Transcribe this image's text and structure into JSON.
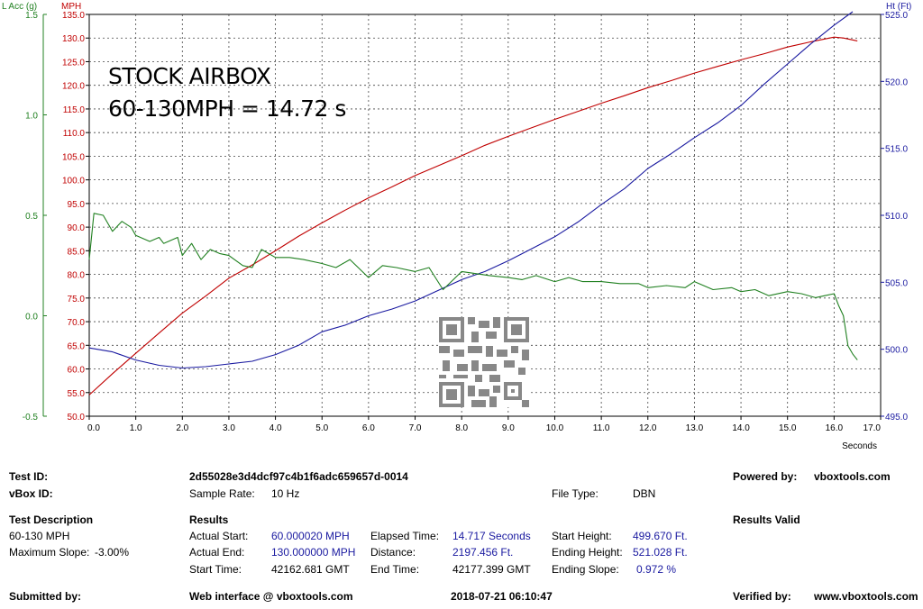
{
  "chart_data": {
    "type": "line",
    "overlay_title": "STOCK AIRBOX",
    "overlay_subtitle": "60-130MPH = 14.72 s",
    "x_axis": {
      "label": "Seconds",
      "range": [
        0,
        17
      ],
      "ticks": [
        "0.0",
        "1.0",
        "2.0",
        "3.0",
        "4.0",
        "5.0",
        "6.0",
        "7.0",
        "8.0",
        "9.0",
        "10.0",
        "11.0",
        "12.0",
        "13.0",
        "14.0",
        "15.0",
        "16.0",
        "17.0"
      ]
    },
    "y_axes": {
      "lacc": {
        "label": "L Acc (g)",
        "color": "#208020",
        "range": [
          -0.5,
          1.5
        ],
        "ticks": [
          "1.5",
          "1.0",
          "0.5",
          "0.0",
          "-0.5"
        ],
        "tick_values": [
          1.5,
          1.0,
          0.5,
          0.0,
          -0.5
        ]
      },
      "mph": {
        "label": "MPH",
        "color": "#c00000",
        "range": [
          50,
          135
        ],
        "ticks": [
          "135.0",
          "130.0",
          "125.0",
          "120.0",
          "115.0",
          "110.0",
          "105.0",
          "100.0",
          "95.0",
          "90.0",
          "85.0",
          "80.0",
          "75.0",
          "70.0",
          "65.0",
          "60.0",
          "55.0",
          "50.0"
        ]
      },
      "ht": {
        "label": "Ht (Ft)",
        "color": "#1a1aa0",
        "range": [
          495,
          525
        ],
        "ticks": [
          "525.0",
          "520.0",
          "515.0",
          "510.0",
          "505.0",
          "500.0",
          "495.0"
        ],
        "tick_values": [
          525,
          520,
          515,
          510,
          505,
          500,
          495
        ]
      }
    },
    "grid": true,
    "series": [
      {
        "axis": "mph",
        "color": "#c00000",
        "x": [
          0.0,
          0.5,
          1.0,
          1.5,
          2.0,
          2.5,
          3.0,
          3.5,
          4.0,
          4.5,
          5.0,
          5.5,
          6.0,
          6.5,
          7.0,
          7.5,
          8.0,
          8.5,
          9.0,
          9.5,
          10.0,
          10.5,
          11.0,
          11.5,
          12.0,
          12.5,
          13.0,
          13.5,
          14.0,
          14.5,
          15.0,
          15.5,
          16.0,
          16.2,
          16.5
        ],
        "y": [
          54.5,
          59.0,
          63.3,
          67.6,
          71.8,
          75.4,
          79.2,
          82.0,
          85.0,
          88.1,
          90.9,
          93.6,
          96.2,
          98.5,
          100.9,
          103.0,
          105.1,
          107.3,
          109.2,
          111.0,
          112.8,
          114.5,
          116.2,
          117.8,
          119.5,
          121.0,
          122.6,
          124.0,
          125.4,
          126.7,
          128.1,
          129.2,
          130.2,
          130.0,
          129.4
        ]
      },
      {
        "axis": "ht",
        "color": "#1a1aa0",
        "x": [
          0.0,
          0.5,
          1.0,
          1.5,
          2.0,
          2.5,
          3.0,
          3.5,
          4.0,
          4.5,
          5.0,
          5.5,
          6.0,
          6.5,
          7.0,
          7.5,
          8.0,
          8.5,
          9.0,
          9.5,
          10.0,
          10.5,
          11.0,
          11.5,
          12.0,
          12.5,
          13.0,
          13.5,
          14.0,
          14.5,
          15.0,
          15.5,
          16.0,
          16.4
        ],
        "y": [
          500.1,
          499.8,
          499.2,
          498.8,
          498.6,
          498.7,
          498.9,
          499.1,
          499.6,
          500.3,
          501.3,
          501.8,
          502.5,
          503.0,
          503.6,
          504.4,
          505.2,
          505.8,
          506.6,
          507.5,
          508.4,
          509.5,
          510.8,
          512.0,
          513.5,
          514.6,
          515.8,
          516.9,
          518.2,
          519.8,
          521.3,
          522.8,
          524.2,
          525.2
        ]
      },
      {
        "axis": "lacc",
        "color": "#208020",
        "x": [
          0.0,
          0.1,
          0.3,
          0.5,
          0.7,
          0.9,
          1.0,
          1.3,
          1.5,
          1.6,
          1.9,
          2.0,
          2.2,
          2.4,
          2.6,
          2.8,
          3.0,
          3.3,
          3.5,
          3.7,
          4.0,
          4.3,
          4.6,
          5.0,
          5.3,
          5.6,
          6.0,
          6.3,
          6.6,
          7.0,
          7.3,
          7.6,
          8.0,
          8.3,
          8.6,
          9.0,
          9.3,
          9.6,
          10.0,
          10.3,
          10.6,
          11.0,
          11.4,
          11.8,
          12.0,
          12.4,
          12.8,
          13.0,
          13.4,
          13.8,
          14.0,
          14.3,
          14.6,
          15.0,
          15.3,
          15.6,
          15.8,
          16.0,
          16.1,
          16.2,
          16.3,
          16.4,
          16.5
        ],
        "y": [
          0.28,
          0.51,
          0.5,
          0.42,
          0.47,
          0.44,
          0.4,
          0.37,
          0.39,
          0.36,
          0.39,
          0.3,
          0.36,
          0.28,
          0.33,
          0.31,
          0.3,
          0.25,
          0.24,
          0.33,
          0.29,
          0.29,
          0.28,
          0.26,
          0.24,
          0.28,
          0.19,
          0.25,
          0.24,
          0.22,
          0.24,
          0.13,
          0.22,
          0.21,
          0.2,
          0.19,
          0.18,
          0.2,
          0.17,
          0.19,
          0.17,
          0.17,
          0.16,
          0.16,
          0.14,
          0.15,
          0.14,
          0.17,
          0.13,
          0.14,
          0.12,
          0.13,
          0.1,
          0.12,
          0.11,
          0.09,
          0.1,
          0.11,
          0.05,
          0.0,
          -0.15,
          -0.19,
          -0.22
        ]
      }
    ]
  },
  "info": {
    "test_id_label": "Test ID:",
    "test_id_value": "2d55028e3d4dcf97c4b1f6adc659657d-0014",
    "powered_by_label": "Powered by:",
    "powered_by_value": "vboxtools.com",
    "vbox_id_label": "vBox ID:",
    "sample_rate_label": "Sample Rate:",
    "sample_rate_value": "10 Hz",
    "file_type_label": "File Type:",
    "file_type_value": "DBN",
    "test_description_label": "Test Description",
    "test_description_value": "60-130 MPH",
    "max_slope_label": "Maximum Slope:",
    "max_slope_value": "-3.00%",
    "results_label": "Results",
    "results_valid_label": "Results Valid",
    "actual_start_label": "Actual Start:",
    "actual_start_value": "60.000020 MPH",
    "elapsed_time_label": "Elapsed Time:",
    "elapsed_time_value": "14.717 Seconds",
    "start_height_label": "Start Height:",
    "start_height_value": "499.670 Ft.",
    "actual_end_label": "Actual End:",
    "actual_end_value": "130.000000 MPH",
    "distance_label": "Distance:",
    "distance_value": "2197.456 Ft.",
    "ending_height_label": "Ending Height:",
    "ending_height_value": "521.028 Ft.",
    "start_time_label": "Start Time:",
    "start_time_value": "42162.681 GMT",
    "end_time_label": "End Time:",
    "end_time_value": "42177.399 GMT",
    "ending_slope_label": "Ending Slope:",
    "ending_slope_value": "0.972 %",
    "submitted_by_label": "Submitted by:",
    "web_interface_label": "Web interface @ vboxtools.com",
    "timestamp_value": "2018-07-21 06:10:47",
    "verified_by_label": "Verified by:",
    "verified_by_value": "www.vboxtools.com"
  }
}
